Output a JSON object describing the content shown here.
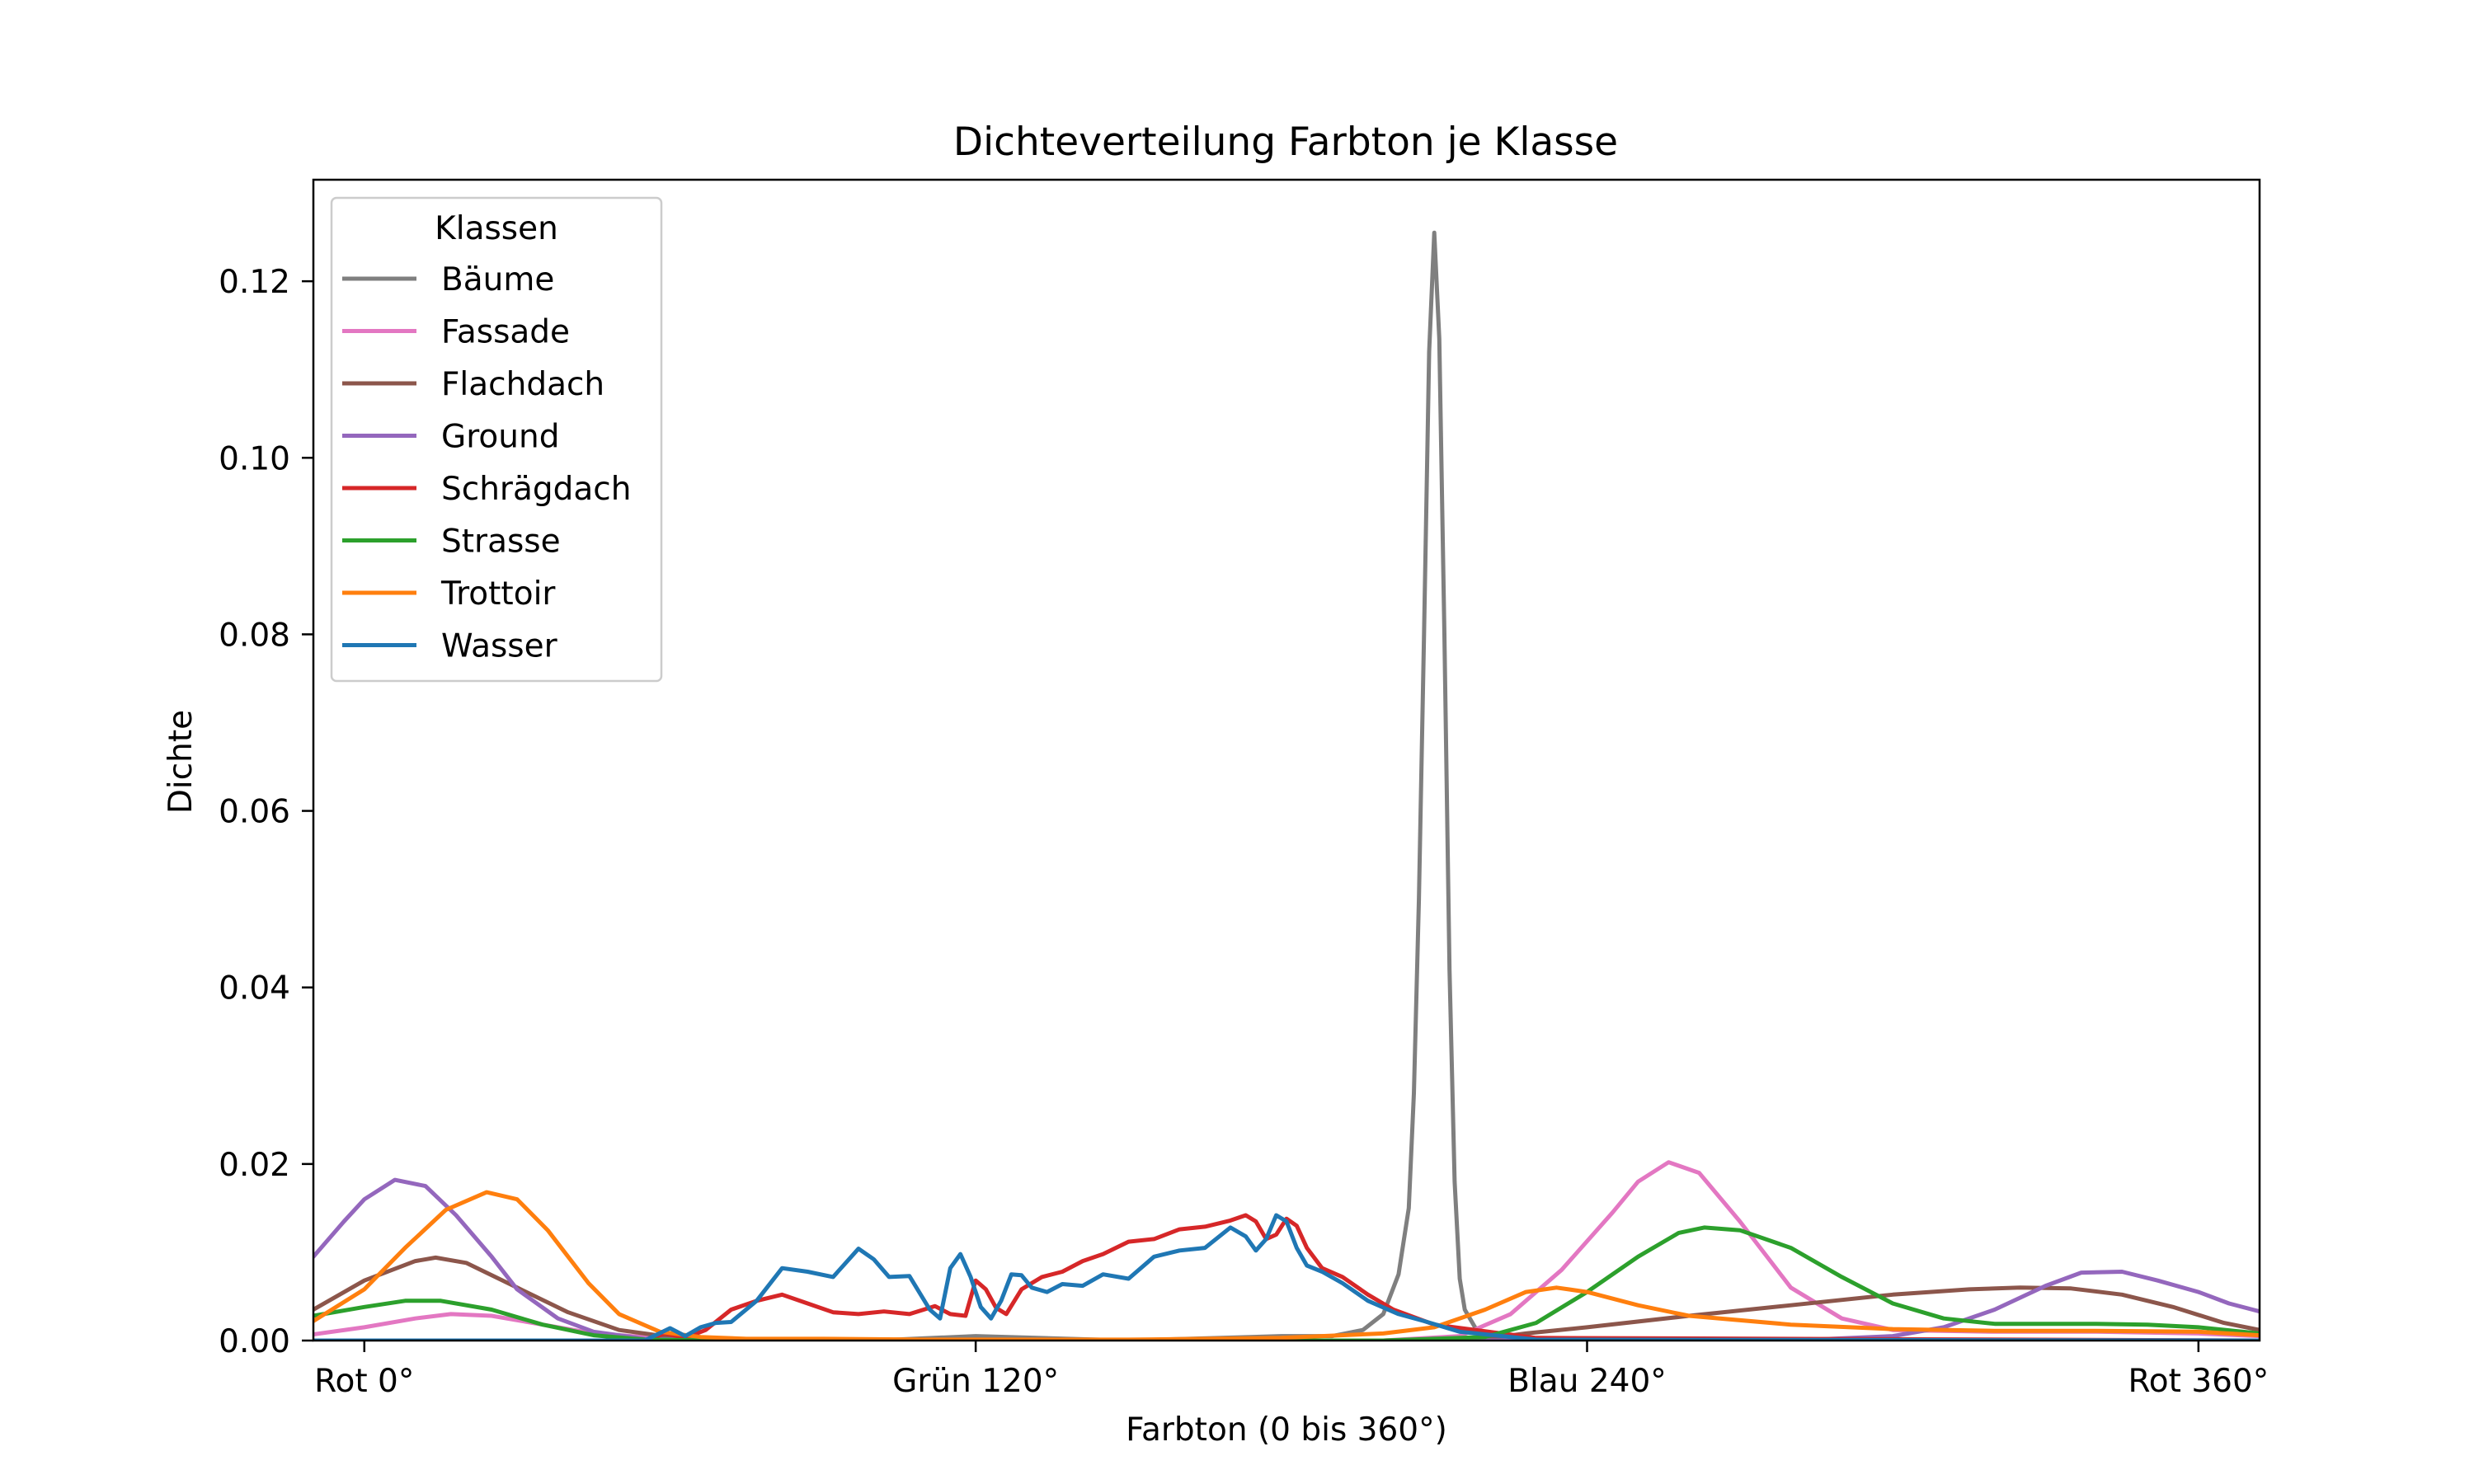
{
  "chart_data": {
    "type": "line",
    "title": "Dichteverteilung Farbton je Klasse",
    "xlabel": "Farbton (0 bis 360°)",
    "ylabel": "Dichte",
    "xlim": [
      -10,
      372
    ],
    "ylim": [
      0,
      0.1315
    ],
    "xticks": [
      {
        "value": 0,
        "label": "Rot 0°"
      },
      {
        "value": 120,
        "label": "Grün 120°"
      },
      {
        "value": 240,
        "label": "Blau 240°"
      },
      {
        "value": 360,
        "label": "Rot 360°"
      }
    ],
    "yticks": [
      {
        "value": 0.0,
        "label": "0.00"
      },
      {
        "value": 0.02,
        "label": "0.02"
      },
      {
        "value": 0.04,
        "label": "0.04"
      },
      {
        "value": 0.06,
        "label": "0.06"
      },
      {
        "value": 0.08,
        "label": "0.08"
      },
      {
        "value": 0.1,
        "label": "0.10"
      },
      {
        "value": 0.12,
        "label": "0.12"
      }
    ],
    "grid": false,
    "legend": {
      "title": "Klassen",
      "position": "top-left"
    },
    "series": [
      {
        "name": "Bäume",
        "color": "#7f7f7f",
        "x": [
          -10,
          100,
          120,
          150,
          180,
          190,
          196,
          200,
          203,
          205,
          206,
          207,
          208,
          209,
          210,
          211,
          212,
          213,
          214,
          215,
          216,
          218,
          220,
          225,
          240,
          372
        ],
        "y": [
          0.0,
          0.0,
          0.0005,
          0.0,
          0.0005,
          0.0005,
          0.0012,
          0.003,
          0.0075,
          0.015,
          0.028,
          0.05,
          0.08,
          0.112,
          0.1255,
          0.1135,
          0.08,
          0.042,
          0.018,
          0.007,
          0.0035,
          0.0015,
          0.0005,
          0.0002,
          0.0,
          0.0
        ]
      },
      {
        "name": "Fassade",
        "color": "#e377c2",
        "x": [
          -10,
          0,
          10,
          17,
          25,
          35,
          45,
          60,
          80,
          120,
          200,
          215,
          225,
          235,
          245,
          250,
          256,
          262,
          270,
          280,
          290,
          300,
          320,
          340,
          360,
          372
        ],
        "y": [
          0.0007,
          0.0015,
          0.0025,
          0.003,
          0.0028,
          0.0018,
          0.0008,
          0.0002,
          0.0,
          0.0,
          0.0,
          0.0005,
          0.003,
          0.008,
          0.0145,
          0.018,
          0.0202,
          0.019,
          0.0135,
          0.006,
          0.0025,
          0.0012,
          0.001,
          0.001,
          0.0008,
          0.0005
        ]
      },
      {
        "name": "Flachdach",
        "color": "#8c564b",
        "x": [
          -10,
          0,
          10,
          14,
          20,
          30,
          40,
          50,
          60,
          70,
          80,
          120,
          200,
          220,
          228,
          240,
          260,
          280,
          300,
          315,
          325,
          335,
          345,
          355,
          365,
          372
        ],
        "y": [
          0.0035,
          0.0068,
          0.009,
          0.0094,
          0.0088,
          0.006,
          0.0032,
          0.0012,
          0.0004,
          0.0001,
          0.0,
          0.0,
          0.0,
          0.0002,
          0.0008,
          0.0015,
          0.0028,
          0.004,
          0.0052,
          0.0058,
          0.006,
          0.0059,
          0.0052,
          0.0038,
          0.002,
          0.0012
        ]
      },
      {
        "name": "Ground",
        "color": "#9467bd",
        "x": [
          -10,
          -4,
          0,
          6,
          12,
          18,
          25,
          30,
          38,
          45,
          55,
          70,
          100,
          200,
          280,
          300,
          310,
          320,
          330,
          337,
          345,
          352,
          360,
          366,
          372
        ],
        "y": [
          0.0095,
          0.0135,
          0.016,
          0.0182,
          0.0175,
          0.0142,
          0.0095,
          0.0058,
          0.0025,
          0.001,
          0.0002,
          0.0,
          0.0,
          0.0,
          0.0,
          0.0005,
          0.0015,
          0.0035,
          0.0062,
          0.0077,
          0.0078,
          0.0068,
          0.0055,
          0.0042,
          0.0033
        ]
      },
      {
        "name": "Schrägdach",
        "color": "#d62728",
        "x": [
          -10,
          50,
          55,
          59,
          63,
          67,
          72,
          77,
          82,
          87,
          92,
          97,
          102,
          107,
          112,
          115,
          118,
          120,
          122,
          124,
          126,
          129,
          133,
          137,
          141,
          145,
          150,
          155,
          160,
          165,
          170,
          173,
          175,
          177,
          179,
          181,
          183,
          185,
          188,
          192,
          197,
          202,
          210,
          230,
          372
        ],
        "y": [
          0.0,
          0.0,
          0.0,
          0.0008,
          0.0003,
          0.0012,
          0.0035,
          0.0045,
          0.0052,
          0.0042,
          0.0032,
          0.003,
          0.0033,
          0.003,
          0.0039,
          0.003,
          0.0028,
          0.0068,
          0.0058,
          0.0037,
          0.003,
          0.0058,
          0.0072,
          0.0078,
          0.009,
          0.0098,
          0.0112,
          0.0115,
          0.0126,
          0.0129,
          0.0136,
          0.0142,
          0.0135,
          0.0115,
          0.012,
          0.0138,
          0.013,
          0.0105,
          0.0082,
          0.0072,
          0.0052,
          0.0035,
          0.0018,
          0.0003,
          0.0
        ]
      },
      {
        "name": "Strasse",
        "color": "#2ca02c",
        "x": [
          -10,
          0,
          8,
          15,
          25,
          35,
          45,
          55,
          70,
          100,
          200,
          220,
          230,
          240,
          250,
          258,
          263,
          270,
          280,
          290,
          300,
          310,
          320,
          330,
          340,
          350,
          360,
          372
        ],
        "y": [
          0.0028,
          0.0038,
          0.0045,
          0.0045,
          0.0035,
          0.0018,
          0.0006,
          0.0001,
          0.0,
          0.0,
          0.0,
          0.0004,
          0.002,
          0.0055,
          0.0095,
          0.0122,
          0.0128,
          0.0125,
          0.0105,
          0.0072,
          0.0042,
          0.0025,
          0.0019,
          0.0019,
          0.0019,
          0.0018,
          0.0015,
          0.0008
        ]
      },
      {
        "name": "Trottoir",
        "color": "#ff7f0e",
        "x": [
          -10,
          0,
          8,
          16,
          24,
          30,
          36,
          44,
          50,
          58,
          66,
          75,
          90,
          110,
          150,
          180,
          200,
          210,
          220,
          228,
          234,
          240,
          250,
          260,
          280,
          300,
          320,
          340,
          360,
          372
        ],
        "y": [
          0.0022,
          0.0058,
          0.0105,
          0.0148,
          0.0168,
          0.016,
          0.0125,
          0.0065,
          0.003,
          0.001,
          0.0004,
          0.0002,
          0.0002,
          0.0001,
          0.0001,
          0.0003,
          0.0008,
          0.0015,
          0.0035,
          0.0055,
          0.006,
          0.0055,
          0.004,
          0.0028,
          0.0018,
          0.0013,
          0.0011,
          0.0011,
          0.001,
          0.0006
        ]
      },
      {
        "name": "Wasser",
        "color": "#1f77b4",
        "x": [
          -10,
          50,
          55,
          60,
          63,
          66,
          69,
          72,
          77,
          82,
          87,
          92,
          97,
          100,
          103,
          107,
          111,
          113,
          115,
          117,
          119,
          121,
          123,
          125,
          127,
          129,
          131,
          134,
          137,
          141,
          145,
          150,
          155,
          160,
          165,
          170,
          173,
          175,
          177,
          179,
          181,
          183,
          185,
          188,
          192,
          197,
          203,
          208,
          215,
          230,
          372
        ],
        "y": [
          0.0,
          0.0,
          0.0,
          0.0014,
          0.0005,
          0.0015,
          0.002,
          0.0021,
          0.0045,
          0.0082,
          0.0078,
          0.0072,
          0.0104,
          0.0092,
          0.0072,
          0.0073,
          0.0035,
          0.0025,
          0.0082,
          0.0098,
          0.0072,
          0.0038,
          0.0025,
          0.0045,
          0.0075,
          0.0074,
          0.006,
          0.0055,
          0.0064,
          0.0062,
          0.0075,
          0.007,
          0.0095,
          0.0102,
          0.0105,
          0.0128,
          0.0118,
          0.0102,
          0.0115,
          0.0142,
          0.0135,
          0.0105,
          0.0085,
          0.0078,
          0.0065,
          0.0045,
          0.003,
          0.0022,
          0.001,
          0.0001,
          0.0
        ]
      }
    ]
  }
}
